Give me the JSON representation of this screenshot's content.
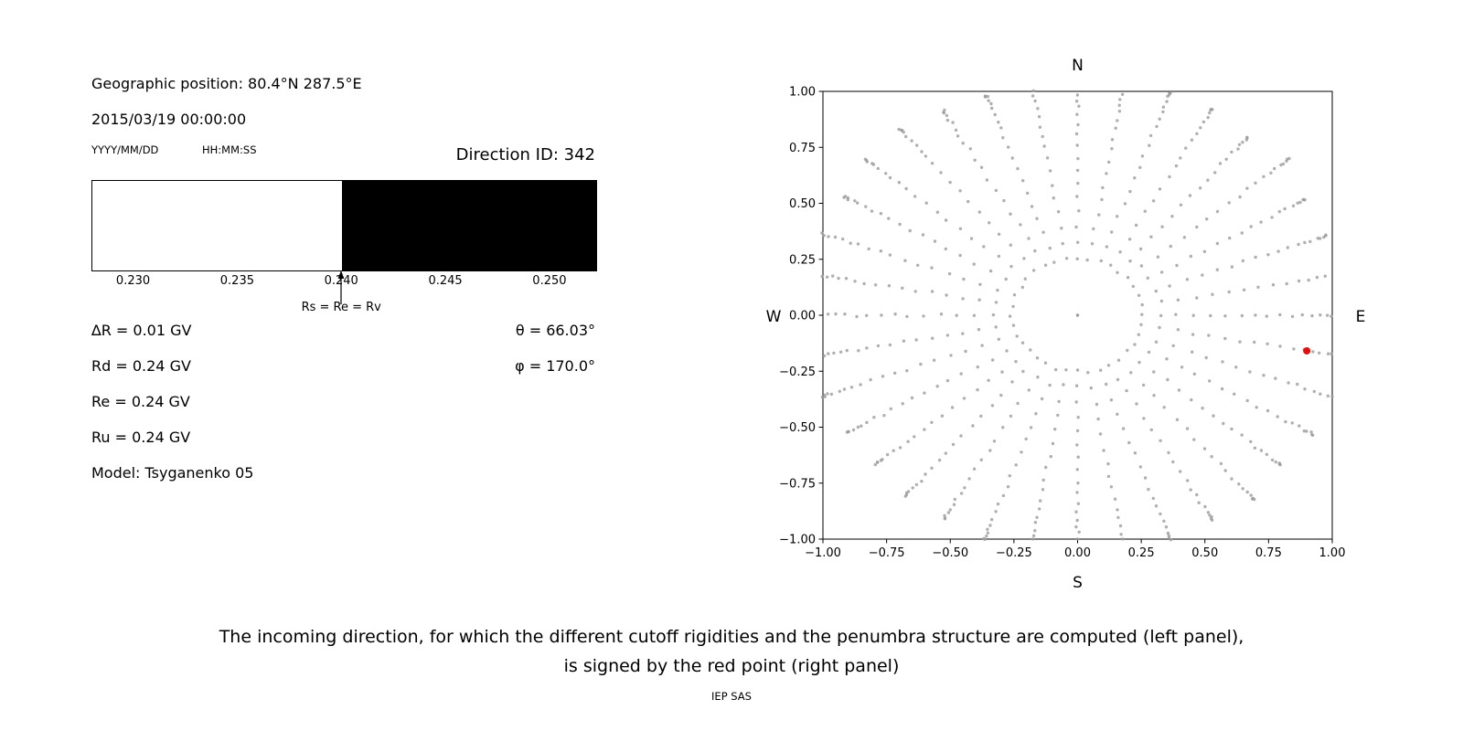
{
  "left_panel": {
    "geographic_position": "Geographic position: 80.4°N 287.5°E",
    "datetime": "2015/03/19 00:00:00",
    "date_format_label": "YYYY/MM/DD",
    "time_format_label": "HH:MM:SS",
    "direction_id": "Direction ID: 342",
    "arrow_label": "Rs = Re = Rv",
    "values": [
      "∆R = 0.01 GV",
      "Rd = 0.24 GV",
      "Re = 0.24 GV",
      "Ru = 0.24 GV",
      "Model: Tsyganenko 05"
    ],
    "theta": "θ = 66.03°",
    "phi": "φ = 170.0°"
  },
  "caption": {
    "line1": "The incoming direction, for which the different cutoff rigidities and the penumbra structure are computed (left panel),",
    "line2": "is signed by the red point (right panel)",
    "credit": "IEP SAS"
  },
  "chart_data": [
    {
      "type": "bar",
      "name": "penumbra-structure",
      "xlim": [
        0.228,
        0.2522
      ],
      "ticks": [
        {
          "value": 0.23,
          "label": "0.230"
        },
        {
          "value": 0.235,
          "label": "0.235"
        },
        {
          "value": 0.24,
          "label": "0.240"
        },
        {
          "value": 0.245,
          "label": "0.245"
        },
        {
          "value": 0.25,
          "label": "0.250"
        }
      ],
      "segments": [
        {
          "from": 0.228,
          "to": 0.24,
          "color": "#ffffff"
        },
        {
          "from": 0.24,
          "to": 0.2522,
          "color": "#000000"
        }
      ],
      "marker": {
        "x": 0.24,
        "label": "Rs = Re = Rv"
      }
    },
    {
      "type": "scatter",
      "name": "incoming-directions",
      "compass": {
        "top": "N",
        "bottom": "S",
        "left": "W",
        "right": "E"
      },
      "xlim": [
        -1,
        1
      ],
      "ylim": [
        -1,
        1
      ],
      "xticks": [
        {
          "value": -1.0,
          "label": "−1.00"
        },
        {
          "value": -0.75,
          "label": "−0.75"
        },
        {
          "value": -0.5,
          "label": "−0.50"
        },
        {
          "value": -0.25,
          "label": "−0.25"
        },
        {
          "value": 0.0,
          "label": "0.00"
        },
        {
          "value": 0.25,
          "label": "0.25"
        },
        {
          "value": 0.5,
          "label": "0.50"
        },
        {
          "value": 0.75,
          "label": "0.75"
        },
        {
          "value": 1.0,
          "label": "1.00"
        }
      ],
      "yticks": [
        {
          "value": 1.0,
          "label": "1.00"
        },
        {
          "value": 0.75,
          "label": "0.75"
        },
        {
          "value": 0.5,
          "label": "0.50"
        },
        {
          "value": 0.25,
          "label": "0.25"
        },
        {
          "value": 0.0,
          "label": "0.00"
        },
        {
          "value": -0.25,
          "label": "−0.25"
        },
        {
          "value": -0.5,
          "label": "−0.50"
        },
        {
          "value": -0.75,
          "label": "−0.75"
        },
        {
          "value": -1.0,
          "label": "−1.00"
        }
      ],
      "point_color": "#9b9b9b",
      "spokes": {
        "azimuth_start_deg": 0,
        "azimuth_step_deg": 10,
        "azimuth_count": 36,
        "radii": [
          0.256,
          0.328,
          0.397,
          0.465,
          0.53,
          0.593,
          0.653,
          0.709,
          0.763,
          0.812,
          0.858,
          0.899,
          0.936,
          0.968,
          0.996,
          1.019,
          1.037,
          1.05,
          1.057,
          1.06
        ],
        "jitter": 0.006,
        "clip": 1.004
      },
      "center_point": {
        "x": 0,
        "y": 0
      },
      "highlight": {
        "x": 0.9,
        "y": -0.159,
        "color": "#e01010"
      }
    }
  ]
}
